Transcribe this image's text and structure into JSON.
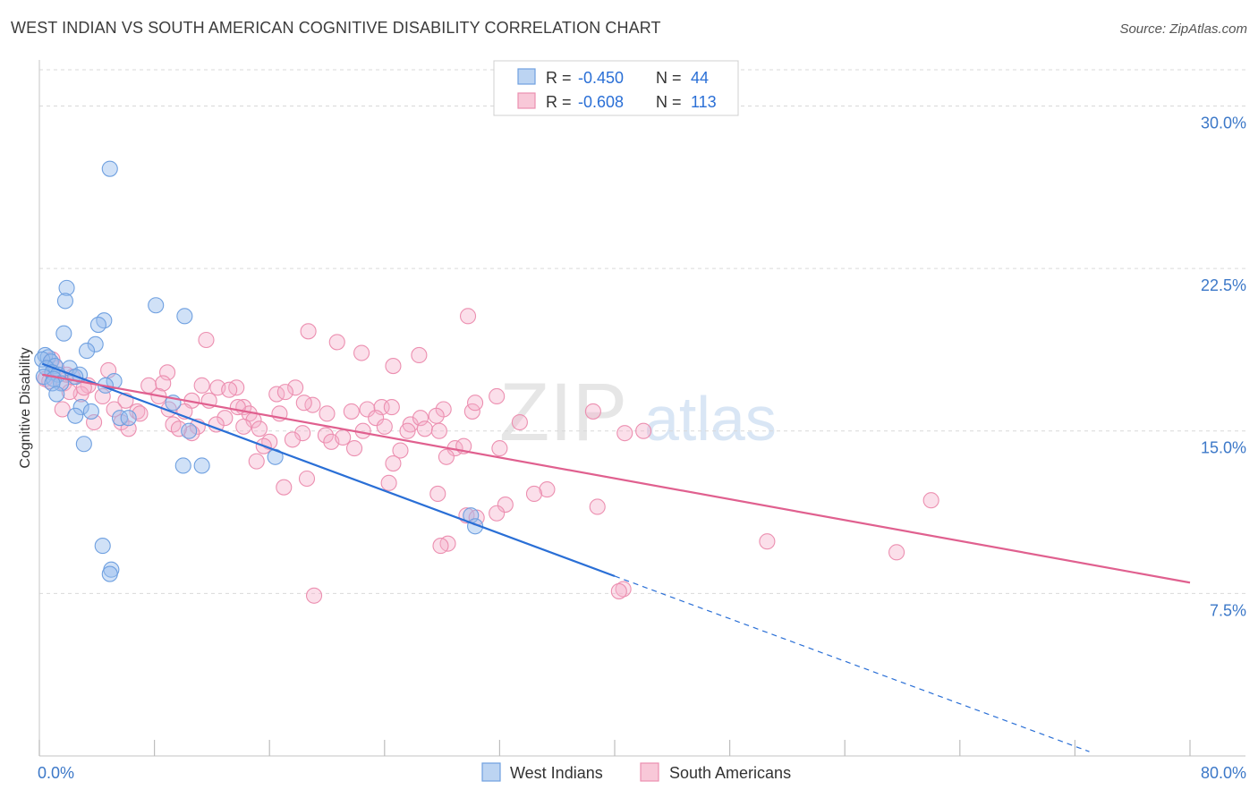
{
  "header": {
    "title": "WEST INDIAN VS SOUTH AMERICAN COGNITIVE DISABILITY CORRELATION CHART",
    "source": "Source: ZipAtlas.com"
  },
  "watermark": {
    "zip": "ZIP",
    "atlas": "atlas"
  },
  "colors": {
    "west_indian": "#6fa0e0",
    "west_indian_line": "#2a6fd6",
    "south_american": "#ec8fb0",
    "south_american_line": "#e0608f",
    "axis_label": "#3c78c8",
    "grid": "#d9d9d9"
  },
  "stats_box": {
    "rows": [
      {
        "r_label": "R =",
        "r_value": "-0.450",
        "n_label": "N =",
        "n_value": "44"
      },
      {
        "r_label": "R =",
        "r_value": "-0.608",
        "n_label": "N =",
        "n_value": "113"
      }
    ]
  },
  "chart_data": {
    "type": "scatter",
    "xlabel": "",
    "ylabel": "Cognitive Disability",
    "xlim": [
      0,
      80
    ],
    "ylim": [
      0,
      32
    ],
    "x_tick_labels": [
      "0.0%",
      "80.0%"
    ],
    "y_ticks": [
      7.5,
      15.0,
      22.5,
      30.0
    ],
    "y_tick_labels": [
      "7.5%",
      "15.0%",
      "22.5%",
      "30.0%"
    ],
    "grid": true,
    "legend": "bottom-center",
    "series": [
      {
        "name": "West Indians",
        "r": -0.45,
        "n": 44,
        "trend": {
          "x_start": 0.2,
          "y_start": 18.1,
          "x_end_solid": 40,
          "y_end": 8.3,
          "x_end_dashed": 73,
          "y_end_dashed": 0.2
        },
        "points": [
          [
            4.9,
            27.1
          ],
          [
            1.9,
            21.6
          ],
          [
            1.8,
            21.0
          ],
          [
            8.1,
            20.8
          ],
          [
            10.1,
            20.3
          ],
          [
            4.5,
            20.1
          ],
          [
            4.1,
            19.9
          ],
          [
            1.7,
            19.5
          ],
          [
            3.9,
            19.0
          ],
          [
            3.3,
            18.7
          ],
          [
            0.4,
            18.5
          ],
          [
            0.6,
            18.4
          ],
          [
            0.2,
            18.3
          ],
          [
            0.8,
            18.2
          ],
          [
            1.1,
            18.0
          ],
          [
            0.5,
            17.9
          ],
          [
            2.1,
            17.9
          ],
          [
            0.9,
            17.7
          ],
          [
            1.3,
            17.6
          ],
          [
            2.8,
            17.6
          ],
          [
            0.3,
            17.5
          ],
          [
            1.0,
            17.4
          ],
          [
            2.5,
            17.5
          ],
          [
            5.2,
            17.3
          ],
          [
            1.5,
            17.2
          ],
          [
            4.6,
            17.1
          ],
          [
            0.9,
            17.2
          ],
          [
            1.2,
            16.7
          ],
          [
            9.3,
            16.3
          ],
          [
            2.9,
            16.1
          ],
          [
            3.6,
            15.9
          ],
          [
            2.5,
            15.7
          ],
          [
            5.6,
            15.6
          ],
          [
            6.2,
            15.6
          ],
          [
            10.4,
            15.0
          ],
          [
            3.1,
            14.4
          ],
          [
            16.4,
            13.8
          ],
          [
            10.0,
            13.4
          ],
          [
            11.3,
            13.4
          ],
          [
            30.0,
            11.1
          ],
          [
            30.3,
            10.6
          ],
          [
            4.4,
            9.7
          ],
          [
            5.0,
            8.6
          ],
          [
            4.9,
            8.4
          ]
        ]
      },
      {
        "name": "South Americans",
        "r": -0.608,
        "n": 113,
        "trend": {
          "x_start": 0.2,
          "y_start": 17.6,
          "x_end": 80,
          "y_end": 8.0
        },
        "points": [
          [
            29.8,
            20.3
          ],
          [
            18.7,
            19.6
          ],
          [
            11.6,
            19.2
          ],
          [
            20.7,
            19.1
          ],
          [
            22.4,
            18.6
          ],
          [
            26.4,
            18.5
          ],
          [
            24.6,
            18.0
          ],
          [
            0.9,
            18.3
          ],
          [
            4.8,
            17.8
          ],
          [
            1.2,
            17.9
          ],
          [
            2.3,
            17.5
          ],
          [
            8.9,
            17.7
          ],
          [
            0.4,
            17.4
          ],
          [
            1.7,
            17.2
          ],
          [
            3.4,
            17.1
          ],
          [
            7.6,
            17.1
          ],
          [
            8.6,
            17.2
          ],
          [
            11.3,
            17.1
          ],
          [
            12.4,
            17.0
          ],
          [
            13.7,
            17.0
          ],
          [
            17.8,
            17.0
          ],
          [
            13.2,
            16.9
          ],
          [
            16.5,
            16.7
          ],
          [
            17.1,
            16.8
          ],
          [
            31.8,
            16.6
          ],
          [
            2.9,
            16.7
          ],
          [
            4.4,
            16.6
          ],
          [
            6.0,
            16.4
          ],
          [
            10.6,
            16.4
          ],
          [
            14.2,
            16.1
          ],
          [
            19.0,
            16.2
          ],
          [
            22.8,
            16.0
          ],
          [
            23.8,
            16.1
          ],
          [
            24.5,
            16.1
          ],
          [
            28.1,
            16.0
          ],
          [
            30.1,
            15.9
          ],
          [
            38.5,
            15.9
          ],
          [
            1.6,
            16.0
          ],
          [
            5.2,
            16.0
          ],
          [
            6.8,
            15.9
          ],
          [
            9.0,
            16.0
          ],
          [
            10.1,
            15.9
          ],
          [
            12.9,
            15.6
          ],
          [
            14.6,
            15.8
          ],
          [
            16.7,
            15.8
          ],
          [
            20.0,
            15.8
          ],
          [
            23.4,
            15.6
          ],
          [
            25.8,
            15.3
          ],
          [
            26.5,
            15.6
          ],
          [
            27.6,
            15.7
          ],
          [
            3.8,
            15.4
          ],
          [
            5.7,
            15.4
          ],
          [
            9.3,
            15.3
          ],
          [
            11.0,
            15.2
          ],
          [
            12.3,
            15.3
          ],
          [
            14.9,
            15.5
          ],
          [
            15.3,
            15.1
          ],
          [
            22.5,
            15.0
          ],
          [
            24.0,
            15.2
          ],
          [
            25.6,
            15.0
          ],
          [
            26.8,
            15.1
          ],
          [
            27.8,
            15.0
          ],
          [
            40.7,
            14.9
          ],
          [
            42.0,
            15.0
          ],
          [
            6.2,
            15.1
          ],
          [
            10.6,
            14.9
          ],
          [
            18.3,
            14.9
          ],
          [
            19.9,
            14.8
          ],
          [
            16.0,
            14.5
          ],
          [
            20.3,
            14.5
          ],
          [
            21.1,
            14.7
          ],
          [
            15.6,
            14.3
          ],
          [
            21.9,
            14.2
          ],
          [
            28.9,
            14.2
          ],
          [
            29.5,
            14.3
          ],
          [
            32.0,
            14.2
          ],
          [
            25.1,
            14.1
          ],
          [
            15.1,
            13.6
          ],
          [
            24.6,
            13.5
          ],
          [
            28.3,
            13.8
          ],
          [
            18.6,
            12.8
          ],
          [
            24.3,
            12.6
          ],
          [
            17.0,
            12.4
          ],
          [
            35.3,
            12.3
          ],
          [
            34.4,
            12.1
          ],
          [
            27.7,
            12.1
          ],
          [
            32.4,
            11.6
          ],
          [
            38.8,
            11.5
          ],
          [
            31.8,
            11.2
          ],
          [
            29.7,
            11.1
          ],
          [
            30.4,
            11.0
          ],
          [
            62.0,
            11.8
          ],
          [
            28.4,
            9.8
          ],
          [
            27.9,
            9.7
          ],
          [
            50.6,
            9.9
          ],
          [
            59.6,
            9.4
          ],
          [
            40.6,
            7.7
          ],
          [
            40.3,
            7.6
          ],
          [
            19.1,
            7.4
          ],
          [
            7.0,
            15.8
          ],
          [
            13.8,
            16.1
          ],
          [
            8.3,
            16.6
          ],
          [
            2.1,
            16.8
          ],
          [
            11.8,
            16.4
          ],
          [
            18.4,
            16.3
          ],
          [
            21.7,
            15.9
          ],
          [
            0.7,
            17.3
          ],
          [
            1.9,
            17.6
          ],
          [
            3.1,
            17.0
          ],
          [
            9.7,
            15.1
          ],
          [
            14.2,
            15.2
          ],
          [
            17.6,
            14.6
          ],
          [
            30.3,
            16.3
          ],
          [
            33.4,
            15.4
          ]
        ]
      }
    ]
  },
  "legend": {
    "items": [
      {
        "label": "West Indians"
      },
      {
        "label": "South Americans"
      }
    ]
  }
}
